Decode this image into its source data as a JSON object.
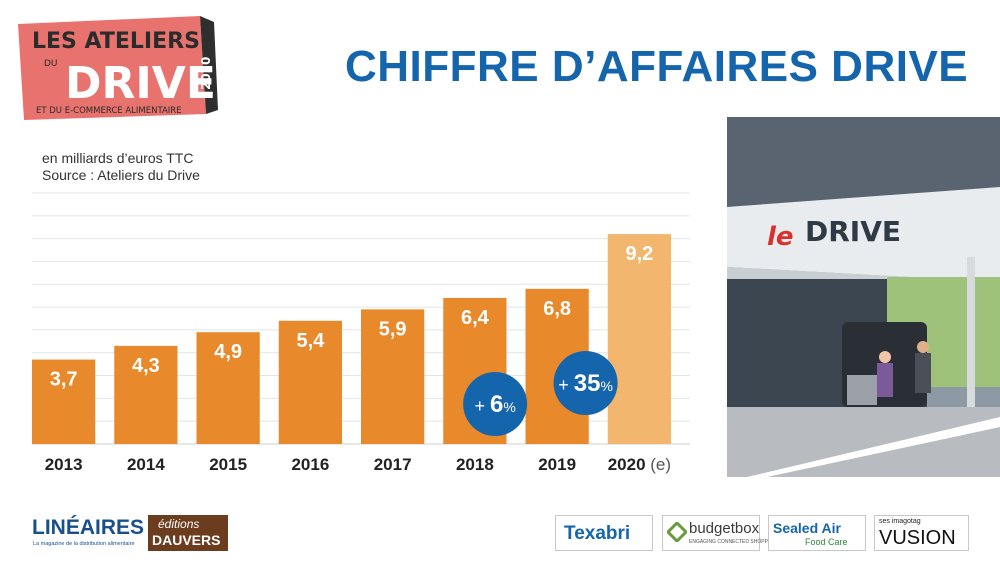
{
  "logo": {
    "line1": "LES ATELIERS",
    "line2": "DU",
    "line3": "DRIVE",
    "year": "2020",
    "tagline": "ET DU E-COMMERCE ALIMENTAIRE"
  },
  "header": {
    "title": "CHIFFRE D’AFFAIRES DRIVE",
    "unit_note": "en milliards d’euros TTC",
    "source_note": "Source : Ateliers du Drive"
  },
  "colors": {
    "bar": "#e8892b",
    "bar_estimate": "#f2b66f",
    "bubble": "#1565ad",
    "title": "#1565ad"
  },
  "chart_data": {
    "type": "bar",
    "categories": [
      "2013",
      "2014",
      "2015",
      "2016",
      "2017",
      "2018",
      "2019",
      "2020"
    ],
    "category_suffix": [
      "",
      "",
      "",
      "",
      "",
      "",
      "",
      " (e)"
    ],
    "values": [
      3.7,
      4.3,
      4.9,
      5.4,
      5.9,
      6.4,
      6.8,
      9.2
    ],
    "value_labels": [
      "3,7",
      "4,3",
      "4,9",
      "5,4",
      "5,9",
      "6,4",
      "6,8",
      "9,2"
    ],
    "estimate_flags": [
      false,
      false,
      false,
      false,
      false,
      false,
      false,
      true
    ],
    "ylim": [
      0,
      11
    ],
    "grid": true,
    "annotations": [
      {
        "category": "2018",
        "sign": "+",
        "value": "6",
        "unit": "%"
      },
      {
        "category": "2019",
        "sign": "+",
        "value": "35",
        "unit": "%"
      }
    ]
  },
  "photo": {
    "sign_text_1": "le",
    "sign_text_2": "DRIVE"
  },
  "footer": {
    "lineaires": "LINÉAIRES",
    "lineaires_tag": "La magazine de la distribution alimentaire",
    "dauvers_top": "éditions",
    "dauvers_bottom": "DAUVERS",
    "texabri": "Texabri",
    "budgetbox": "budgetbox",
    "budgetbox_tag": "ENGAGING CONNECTED SHOPPERS",
    "sealedair": "Sealed Air",
    "sealedair_tag": "Food Care",
    "vusion_top": "ses imagotag",
    "vusion": "VUSION"
  }
}
